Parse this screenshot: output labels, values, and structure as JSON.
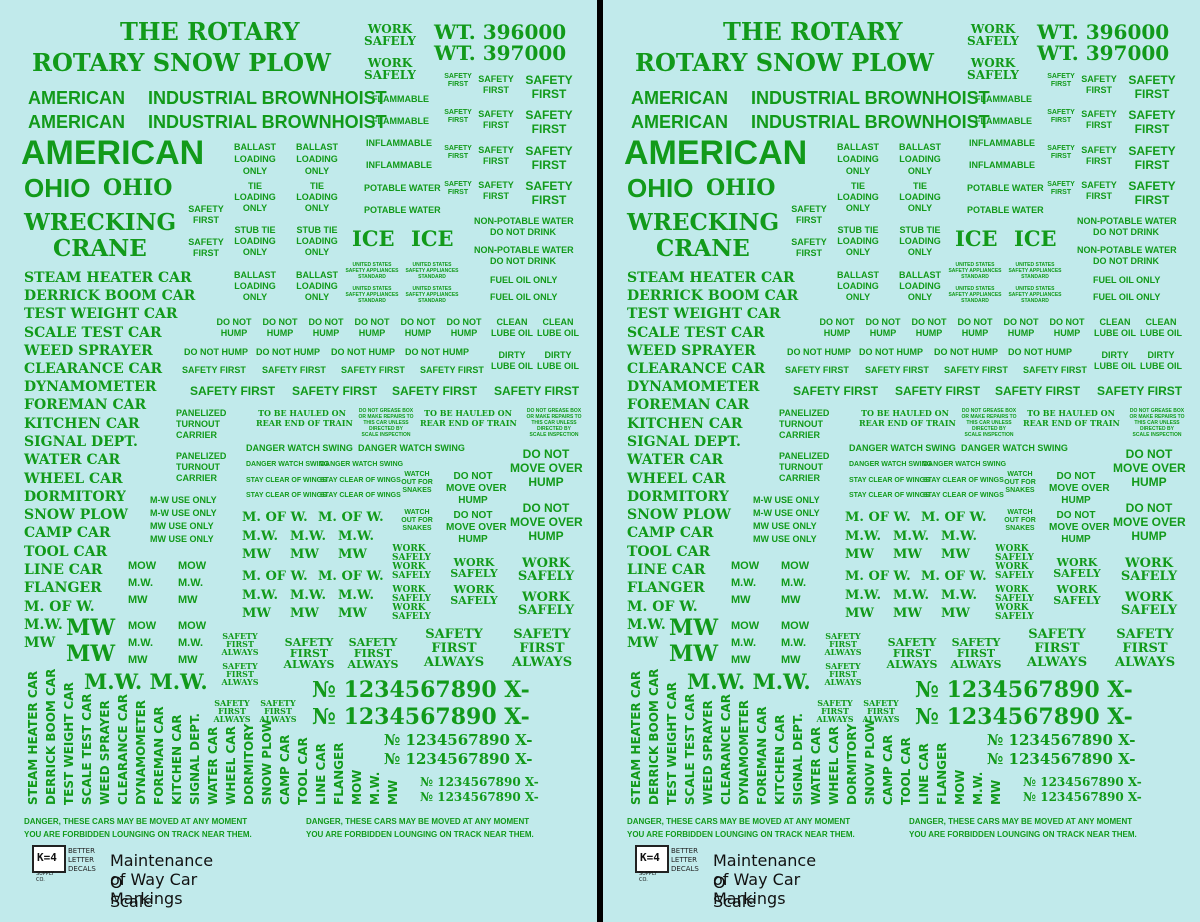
{
  "sheet": {
    "header": {
      "the_rotary": "THE ROTARY",
      "rotary_snow_plow": "ROTARY SNOW PLOW",
      "work_safely": "WORK SAFELY",
      "wt1": "WT. 396000",
      "wt2": "WT. 397000"
    },
    "brands": {
      "american": "AMERICAN",
      "industrial_brownhoist": "INDUSTRIAL BROWNHOIST",
      "ohio": "OHIO",
      "ohio_serif": "OHIO",
      "wrecking": "WRECKING",
      "crane": "CRANE"
    },
    "small": {
      "flammable": "FLAMMABLE",
      "inflammable": "INFLAMMABLE",
      "potable_water": "POTABLE WATER",
      "non_potable_water": "NON-POTABLE WATER",
      "do_not_drink": "DO NOT DRINK",
      "fuel_oil_only": "FUEL OIL ONLY",
      "safety": "SAFETY",
      "first": "FIRST",
      "ballast": "BALLAST",
      "loading": "LOADING",
      "only": "ONLY",
      "tie": "TIE",
      "stub_tie": "STUB TIE",
      "ice": "ICE",
      "us": "UNITED STATES",
      "sa": "SAFETY APPLIANCES",
      "std": "STANDARD",
      "do_not": "DO NOT",
      "hump": "HUMP",
      "do_not_hump": "DO NOT HUMP",
      "clean": "CLEAN",
      "dirty": "DIRTY",
      "lube_oil": "LUBE OIL",
      "safety_first": "SAFETY FIRST",
      "panelized": "PANELIZED",
      "turnout": "TURNOUT",
      "carrier": "CARRIER",
      "to_be_hauled": "TO BE HAULED ON",
      "rear_end": "REAR END OF TRAIN",
      "grease1": "DO NOT GREASE BOX",
      "grease2": "OR MAKE REPAIRS TO",
      "grease3": "THIS CAR UNLESS",
      "grease4": "DIRECTED BY",
      "grease5": "SCALE INSPECTION",
      "danger_watch_swing": "DANGER WATCH SWING",
      "stay_clear": "STAY CLEAR OF WINGS",
      "watch": "WATCH",
      "out_for": "OUT FOR",
      "snakes": "SNAKES",
      "move_over": "MOVE OVER",
      "mw_use_only": "M-W USE ONLY",
      "mw_use_only2": "MW USE ONLY",
      "mow": "MOW",
      "mdotw": "M.W.",
      "mw": "MW",
      "m_of_w": "M. OF W.",
      "mw_pair": "M.W. M.W.",
      "work": "WORK",
      "safely": "SAFELY",
      "always": "ALWAYS",
      "no_big": "№ 1234567890 X-",
      "danger1": "DANGER, THESE CARS MAY BE MOVED AT ANY MOMENT",
      "danger2": "YOU ARE FORBIDDEN LOUNGING ON TRACK NEAR THEM."
    },
    "car_names": [
      "STEAM HEATER CAR",
      "DERRICK BOOM CAR",
      "TEST WEIGHT CAR",
      "SCALE TEST CAR",
      "WEED SPRAYER",
      "CLEARANCE CAR",
      "DYNAMOMETER",
      "FOREMAN CAR",
      "KITCHEN CAR",
      "SIGNAL DEPT.",
      "WATER CAR",
      "WHEEL CAR",
      "DORMITORY",
      "SNOW PLOW",
      "CAMP CAR",
      "TOOL CAR",
      "LINE CAR",
      "FLANGER",
      "M. OF W.",
      "M.W.",
      "MW"
    ],
    "vertical_names": [
      "STEAM HEATER CAR",
      "DERRICK BOOM CAR",
      "TEST WEIGHT CAR",
      "SCALE TEST CAR",
      "WEED SPRAYER",
      "CLEARANCE CAR",
      "DYNAMOMETER",
      "FOREMAN CAR",
      "KITCHEN CAR",
      "SIGNAL DEPT.",
      "WATER CAR",
      "WHEEL CAR",
      "DORMITORY",
      "SNOW PLOW",
      "CAMP CAR",
      "TOOL CAR",
      "LINE CAR",
      "FLANGER",
      "MOW",
      "M.W.",
      "MW"
    ],
    "footer": {
      "logo": "K=4",
      "logo_sub": "SUPPLY CO.",
      "better": "BETTER",
      "letter": "LETTER",
      "decals": "DECALS",
      "title": "Maintenance of Way Car Markings",
      "scale": "O Scale"
    }
  },
  "colors": {
    "background": "#c1eaeb",
    "ink": "#129a1a",
    "divider": "#000000"
  }
}
